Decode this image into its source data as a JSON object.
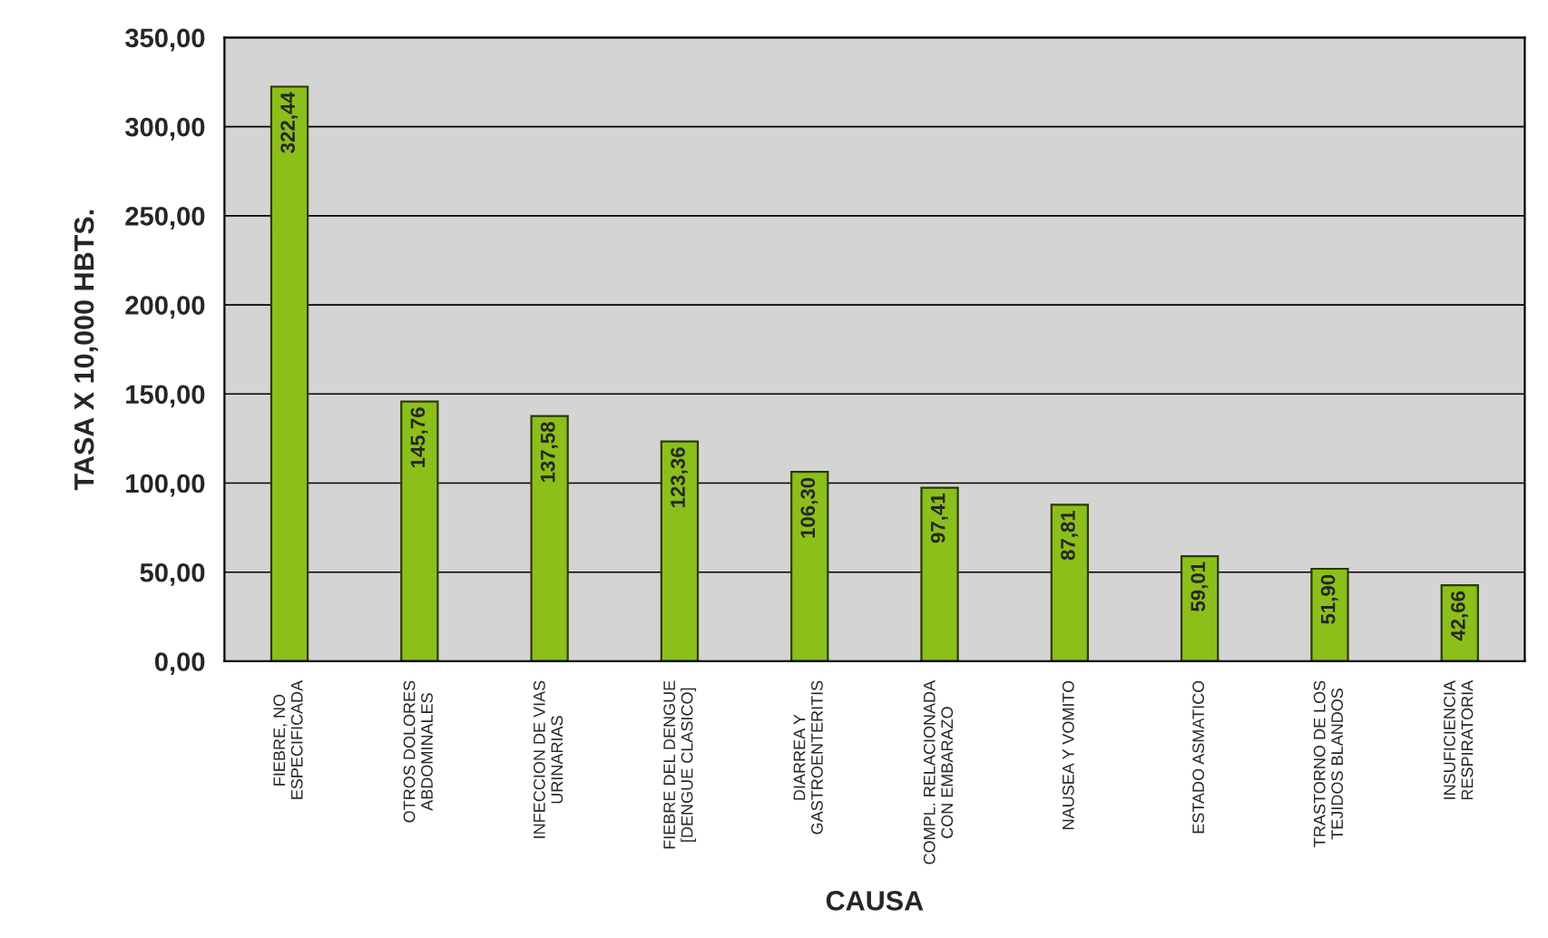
{
  "chart_data": {
    "type": "bar",
    "xlabel": "CAUSA",
    "ylabel": "TASA X 10,000 HBTS.",
    "categories": [
      "FIEBRE, NO\nESPECIFICADA",
      "OTROS DOLORES\nABDOMINALES",
      "INFECCION DE VIAS\nURINARIAS",
      "FIEBRE DEL DENGUE\n[DENGUE CLASICO]",
      "DIARREA Y\nGASTROENTERITIS",
      "COMPL. RELACIONADA\nCON EMBARAZO",
      "NAUSEA Y VOMITO",
      "ESTADO ASMATICO",
      "TRASTORNO DE LOS\nTEJIDOS BLANDOS",
      "INSUFICIENCIA\nRESPIRATORIA"
    ],
    "values": [
      322.44,
      145.76,
      137.58,
      123.36,
      106.3,
      97.41,
      87.81,
      59.01,
      51.9,
      42.66
    ],
    "value_labels": [
      "322,44",
      "145,76",
      "137,58",
      "123,36",
      "106,30",
      "97,41",
      "87,81",
      "59,01",
      "51,90",
      "42,66"
    ],
    "color": "#8cbf1a",
    "ylim": [
      0,
      350
    ],
    "yticks": [
      {
        "value": 0,
        "label": "0,00"
      },
      {
        "value": 50,
        "label": "50,00"
      },
      {
        "value": 100,
        "label": "100,00"
      },
      {
        "value": 150,
        "label": "150,00"
      },
      {
        "value": 200,
        "label": "200,00"
      },
      {
        "value": 250,
        "label": "250,00"
      },
      {
        "value": 300,
        "label": "300,00"
      },
      {
        "value": 350,
        "label": "350,00"
      }
    ],
    "grid": "y",
    "legend": false
  }
}
